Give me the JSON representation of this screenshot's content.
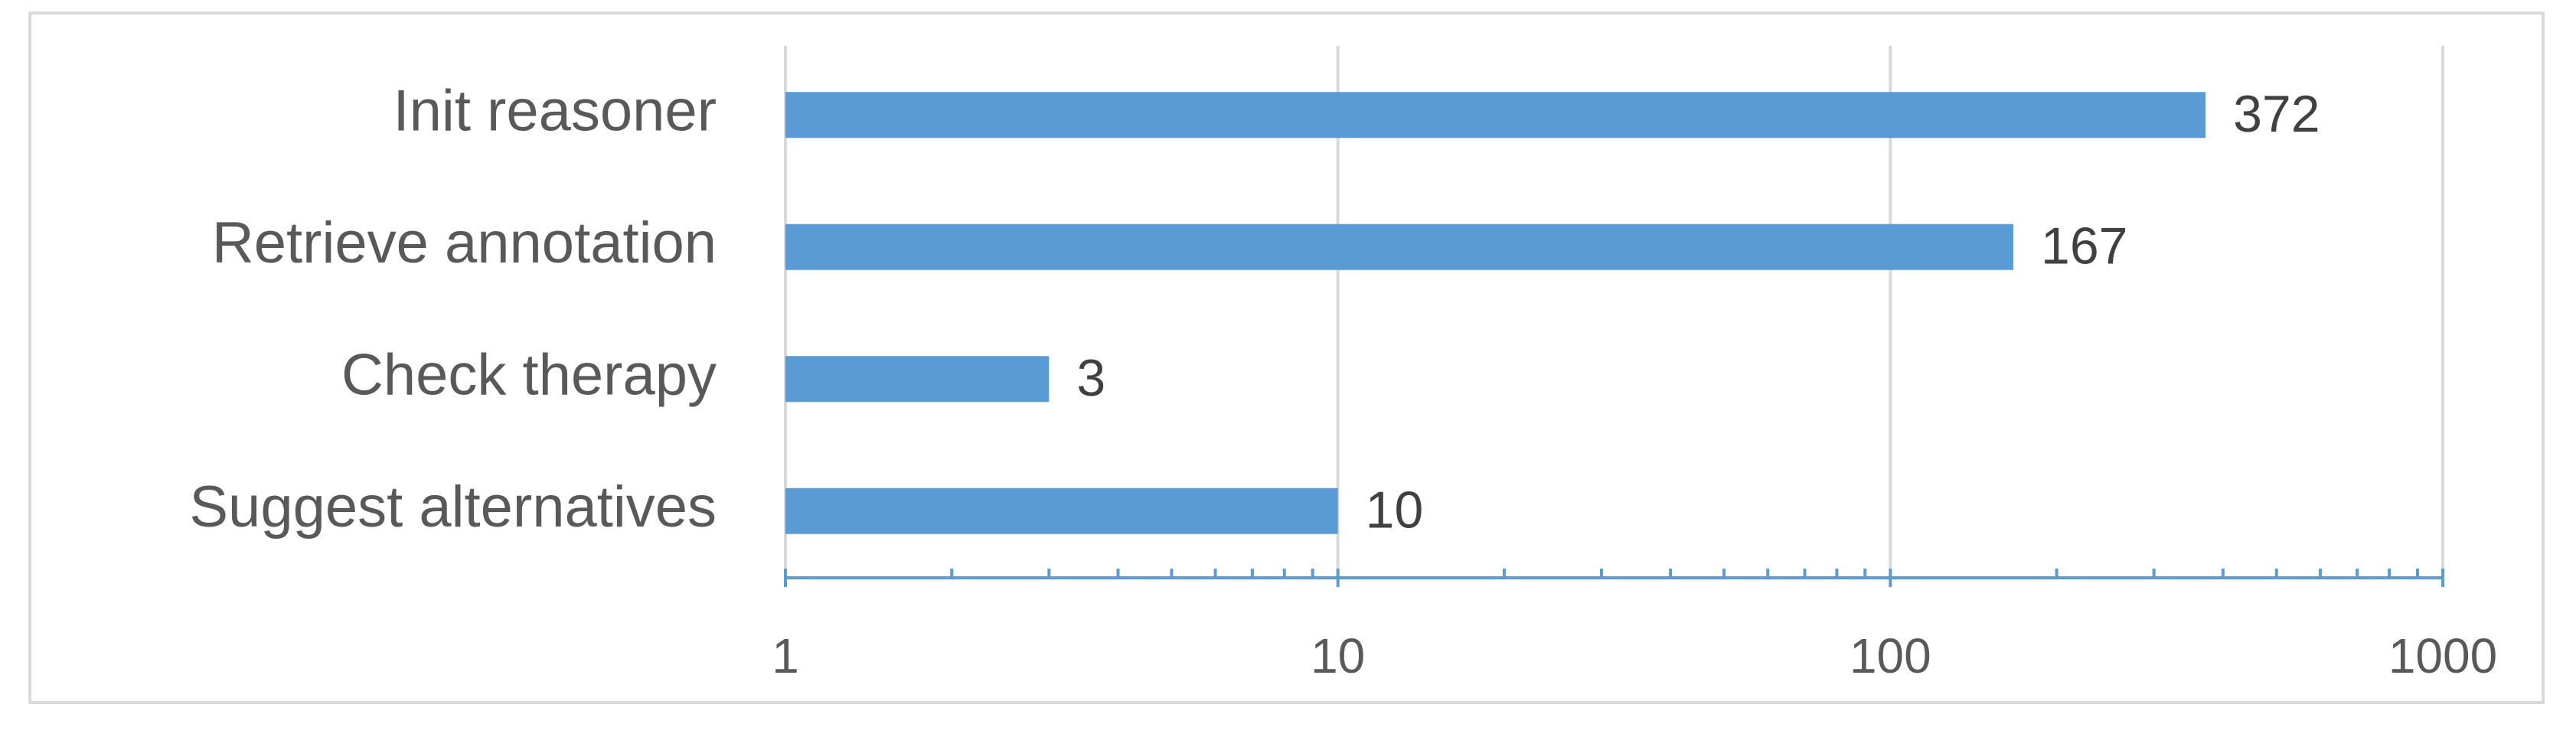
{
  "chart_data": {
    "type": "bar",
    "orientation": "horizontal",
    "categories": [
      "Init reasoner",
      "Retrieve annotation",
      "Check therapy",
      "Suggest alternatives"
    ],
    "values": [
      372,
      167,
      3,
      10
    ],
    "color": "#5b9bd5",
    "xlim": [
      1,
      1000
    ],
    "xticks": [
      1,
      10,
      100,
      1000
    ],
    "log_scale": true,
    "grid": true
  }
}
